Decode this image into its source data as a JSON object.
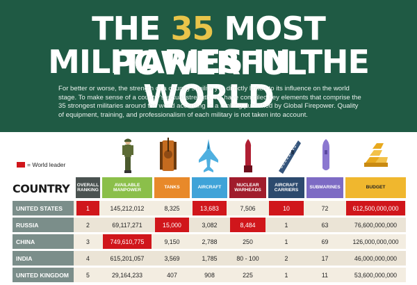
{
  "header": {
    "title_line1_pre": "THE",
    "title_line1_num": "35",
    "title_line1_post": "MOST POWERFUL",
    "title_line2": "MILITARIES IN THE WORLD",
    "intro": "For better or worse, the strength of a country's military is directly linked to its influence on the world stage. To make sense of a country's actual strength, we have compiled key elements that comprise the 35 strongest militaries around the world according to a ranking published by Global Firepower. Quality of equipment, training, and professionalism of each military is not taken into account."
  },
  "legend": {
    "label": "= World leader",
    "color": "#d0161b"
  },
  "icons": [
    "soldier-icon",
    "tank-icon",
    "fighter-jet-icon",
    "warhead-icon",
    "aircraft-carrier-icon",
    "submarine-icon",
    "gold-bars-icon"
  ],
  "colors": {
    "hero_bg": "#1f5a44",
    "title_accent": "#e8c44a",
    "world_leader": "#d0161b",
    "row_label_bg": "#7b8e8a",
    "header_ranking": "#4a5250",
    "header_manpower": "#8bbf4a",
    "header_tanks": "#e8892a",
    "header_aircraft": "#3fa3d8",
    "header_warheads": "#a01c2c",
    "header_carriers": "#2c4a6e",
    "header_submarines": "#7d6bc4",
    "header_budget": "#f0b72e"
  },
  "chart_data": {
    "type": "table",
    "country_header": "COUNTRY",
    "columns": [
      "OVERALL RANKING",
      "AVAILABLE MANPOWER",
      "TANKS",
      "AIRCRAFT",
      "NUCLEAR WARHEADS",
      "AIRCRAFT CARRIERS",
      "SUBMARINES",
      "BUDGET"
    ],
    "rows": [
      {
        "country": "UNITED STATES",
        "values": [
          "1",
          "145,212,012",
          "8,325",
          "13,683",
          "7,506",
          "10",
          "72",
          "612,500,000,000"
        ],
        "leader": [
          true,
          false,
          false,
          true,
          false,
          true,
          false,
          true
        ]
      },
      {
        "country": "RUSSIA",
        "values": [
          "2",
          "69,117,271",
          "15,000",
          "3,082",
          "8,484",
          "1",
          "63",
          "76,600,000,000"
        ],
        "leader": [
          false,
          false,
          true,
          false,
          true,
          false,
          false,
          false
        ]
      },
      {
        "country": "CHINA",
        "values": [
          "3",
          "749,610,775",
          "9,150",
          "2,788",
          "250",
          "1",
          "69",
          "126,000,000,000"
        ],
        "leader": [
          false,
          true,
          false,
          false,
          false,
          false,
          false,
          false
        ]
      },
      {
        "country": "INDIA",
        "values": [
          "4",
          "615,201,057",
          "3,569",
          "1,785",
          "80 - 100",
          "2",
          "17",
          "46,000,000,000"
        ],
        "leader": [
          false,
          false,
          false,
          false,
          false,
          false,
          false,
          false
        ]
      },
      {
        "country": "UNITED KINGDOM",
        "values": [
          "5",
          "29,164,233",
          "407",
          "908",
          "225",
          "1",
          "11",
          "53,600,000,000"
        ],
        "leader": [
          false,
          false,
          false,
          false,
          false,
          false,
          false,
          false
        ]
      }
    ]
  }
}
